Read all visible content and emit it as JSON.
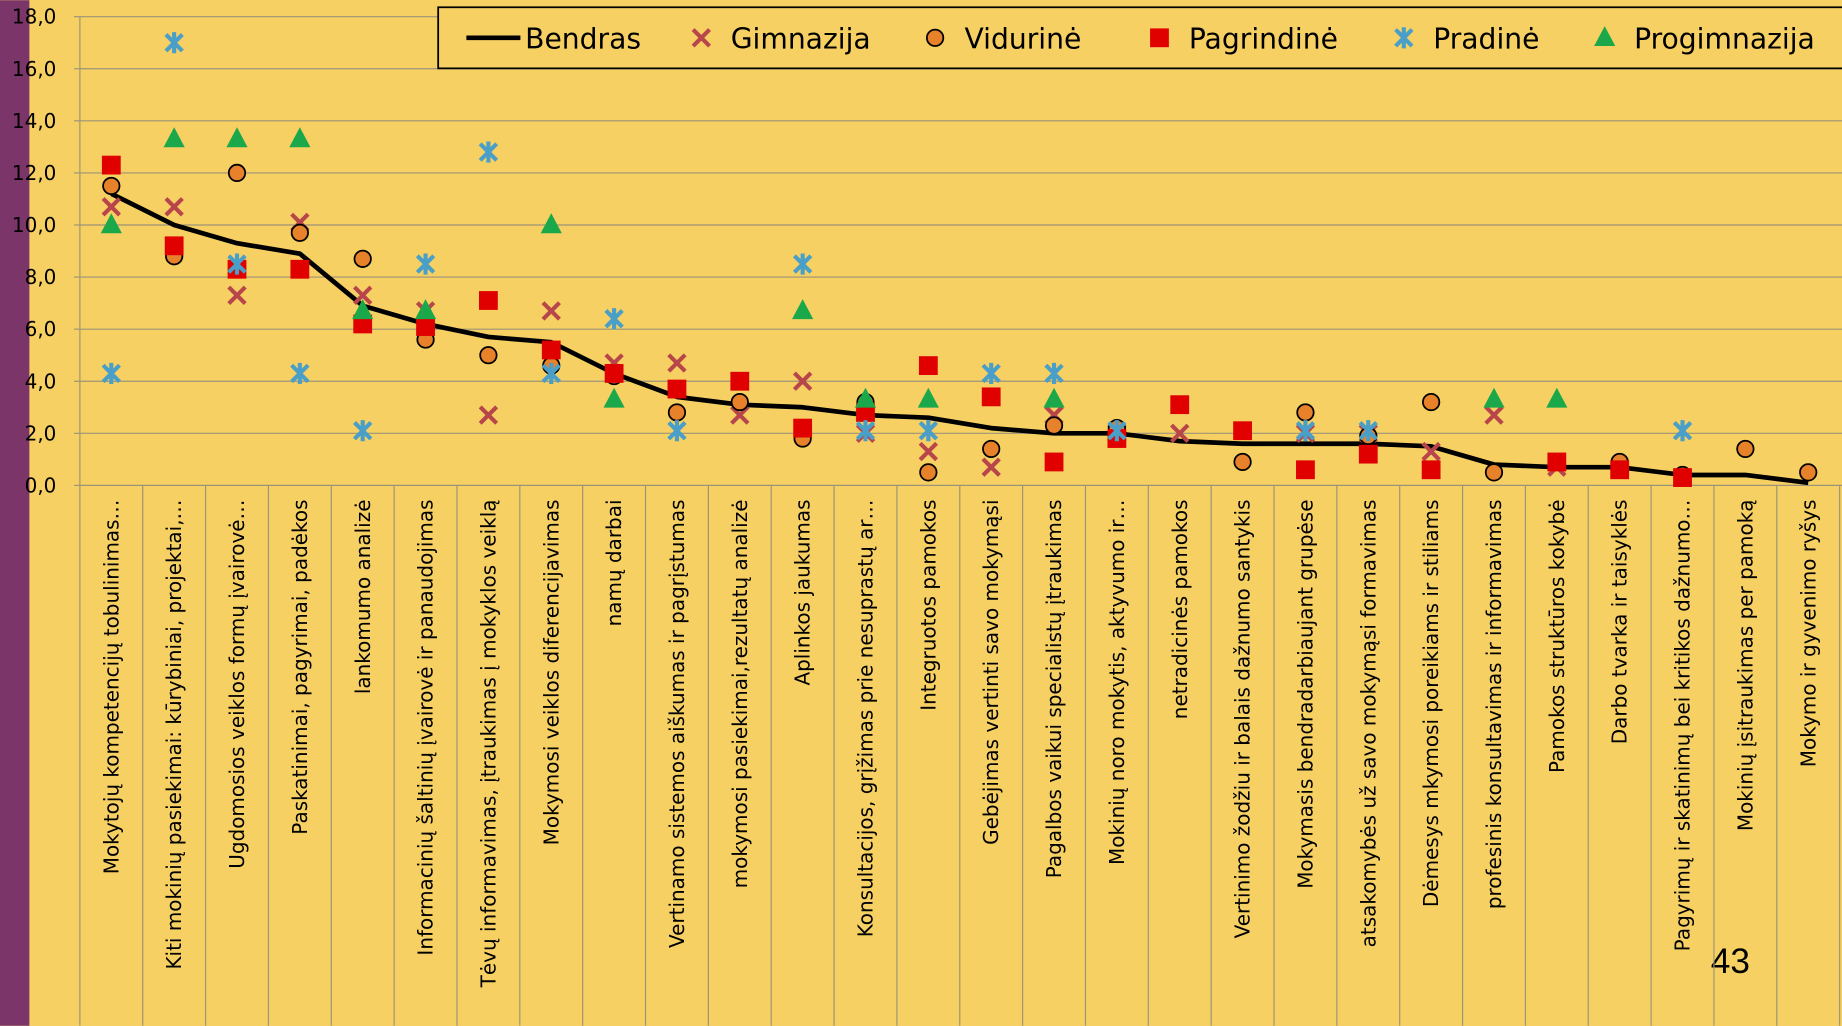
{
  "page_number": "43",
  "chart_data": {
    "type": "scatter-line",
    "categories": [
      "Mokytojų kompetencijų tobulinimas…",
      "Kiti mokinių pasiekimai: kūrybiniai, projektai,…",
      "Ugdomosios veiklos formų įvairovė…",
      "Paskatinimai, pagyrimai, padėkos",
      "lankomumo analizė",
      "Informacinių šaltinių įvairovė ir panaudojimas",
      "Tėvų informavimas, įtraukimas į mokyklos veiklą",
      "Mokymosi veiklos diferencijavimas",
      "namų darbai",
      "Vertinamo sistemos aiškumas ir pagrįstumas",
      "mokymosi pasiekimai,rezultatų analizė",
      "Aplinkos jaukumas",
      "Konsultacijos, grįžimas prie nesuprastų ar…",
      "Integruotos pamokos",
      "Gebėjimas vertinti savo mokymąsi",
      "Pagalbos vaikui specialistų įtraukimas",
      "Mokinių noro mokytis, aktyvumo ir…",
      "netradicinės pamokos",
      "Vertinimo žodžiu ir balais dažnumo santykis",
      "Mokymasis bendradarbiaujant grupėse",
      "atsakomybės už savo mokymąsi formavimas",
      "Dėmesys mkymosi poreikiams ir stiliams",
      "profesinis konsultavimas ir informavimas",
      "Pamokos struktūros kokybė",
      "Darbo tvarka ir taisyklės",
      "Pagyrimų ir skatinimų bei kritikos dažnumo…",
      "Mokinių įsitraukimas per pamoką",
      "Mokymo ir gyvenimo ryšys"
    ],
    "series": [
      {
        "name": "Bendras",
        "color": "#000000",
        "marker": "line",
        "values": [
          11.2,
          10.0,
          9.3,
          8.9,
          6.9,
          6.2,
          5.7,
          5.5,
          4.3,
          3.4,
          3.1,
          3.0,
          2.7,
          2.6,
          2.2,
          2.0,
          2.0,
          1.7,
          1.6,
          1.6,
          1.6,
          1.5,
          0.8,
          0.7,
          0.7,
          0.4,
          0.4,
          0.1
        ]
      },
      {
        "name": "Gimnazija",
        "color": "#b8454a",
        "marker": "x",
        "values": [
          10.7,
          10.7,
          7.3,
          10.1,
          7.3,
          6.7,
          2.7,
          6.7,
          4.7,
          4.7,
          2.7,
          4.0,
          2.0,
          1.3,
          0.7,
          2.7,
          2.0,
          2.0,
          null,
          2.0,
          2.0,
          1.3,
          2.7,
          0.7,
          null,
          null,
          null,
          null
        ]
      },
      {
        "name": "Vidurinė",
        "color": "#e8822a",
        "marker": "circle",
        "values": [
          11.5,
          8.8,
          12.0,
          9.7,
          8.7,
          5.6,
          5.0,
          4.6,
          4.2,
          2.8,
          3.2,
          1.8,
          3.2,
          0.5,
          1.4,
          2.3,
          2.2,
          null,
          0.9,
          2.8,
          1.9,
          3.2,
          0.5,
          null,
          0.9,
          0.4,
          1.4,
          0.5
        ]
      },
      {
        "name": "Pagrindinė",
        "color": "#e00000",
        "marker": "square",
        "values": [
          12.3,
          9.2,
          8.3,
          8.3,
          6.2,
          6.1,
          7.1,
          5.2,
          4.3,
          3.7,
          4.0,
          2.2,
          2.8,
          4.6,
          3.4,
          0.9,
          1.8,
          3.1,
          2.1,
          0.6,
          1.2,
          0.6,
          null,
          0.9,
          0.6,
          0.3,
          null,
          null
        ]
      },
      {
        "name": "Pradinė",
        "color": "#4a9fc8",
        "marker": "star",
        "values": [
          4.3,
          17.0,
          8.5,
          4.3,
          2.1,
          8.5,
          12.8,
          4.3,
          6.4,
          2.1,
          null,
          8.5,
          2.1,
          2.1,
          4.3,
          4.3,
          2.1,
          null,
          null,
          2.1,
          2.1,
          null,
          null,
          null,
          null,
          2.1,
          null,
          null
        ]
      },
      {
        "name": "Progimnazija",
        "color": "#1aa84a",
        "marker": "triangle",
        "values": [
          10.0,
          13.3,
          13.3,
          13.3,
          6.7,
          6.7,
          null,
          10.0,
          3.3,
          null,
          null,
          6.7,
          3.3,
          3.3,
          null,
          3.3,
          null,
          null,
          null,
          null,
          null,
          null,
          3.3,
          3.3,
          null,
          null,
          null,
          null
        ]
      }
    ],
    "ylim": [
      0,
      18
    ],
    "yticks": [
      {
        "value": 0,
        "label": "0,0"
      },
      {
        "value": 2,
        "label": "2,0"
      },
      {
        "value": 4,
        "label": "4,0"
      },
      {
        "value": 6,
        "label": "6,0"
      },
      {
        "value": 8,
        "label": "8,0"
      },
      {
        "value": 10,
        "label": "10,0"
      },
      {
        "value": 12,
        "label": "12,0"
      },
      {
        "value": 14,
        "label": "14,0"
      },
      {
        "value": 16,
        "label": "16,0"
      },
      {
        "value": 18,
        "label": "18,0"
      }
    ],
    "grid": true,
    "legend": "top-right"
  }
}
